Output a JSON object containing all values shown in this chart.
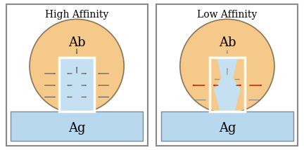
{
  "bg_color": "#ffffff",
  "panel_border_color": "#888888",
  "circle_color": "#f5c98a",
  "circle_edge_color": "#8b7355",
  "ag_color": "#b8d8f0",
  "ag_edge_color": "#888888",
  "pocket_fill": "#c5e0f0",
  "pocket_edge": "#ffffff",
  "title_left": "High Affinity",
  "title_right": "Low Affinity",
  "label_ab": "Ab",
  "label_ag": "Ag",
  "arrow_dark": "#5a5a5a",
  "arrow_red": "#cc1100",
  "arrow_gray": "#888888"
}
